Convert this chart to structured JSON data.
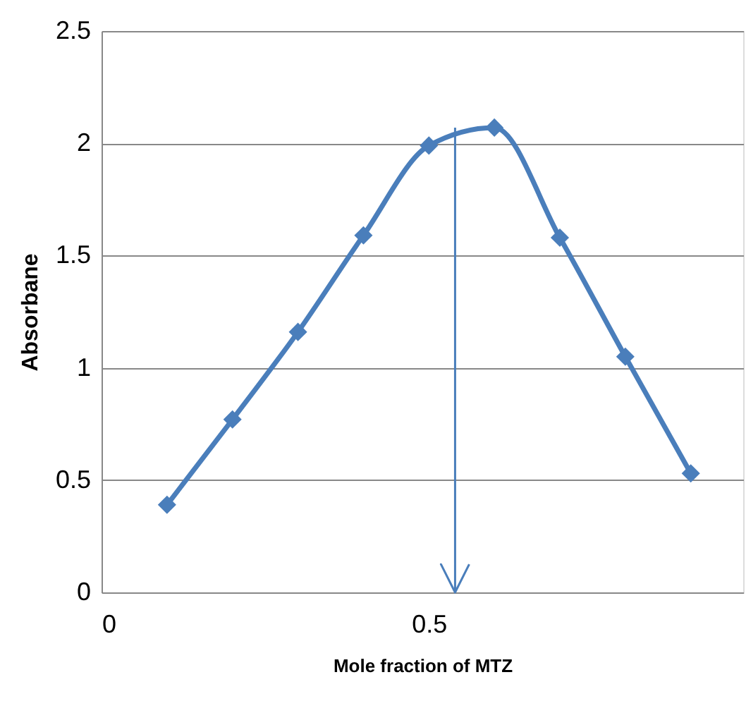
{
  "chart_data": {
    "type": "line",
    "xlabel": "Mole  fraction of MTZ",
    "ylabel": "Absorbane",
    "x": [
      0.1,
      0.2,
      0.3,
      0.4,
      0.5,
      0.6,
      0.7,
      0.8,
      0.9
    ],
    "series": [
      {
        "color": "#4a7ebb",
        "values": [
          0.39,
          0.77,
          1.16,
          1.59,
          1.99,
          2.07,
          1.58,
          1.05,
          0.53
        ]
      }
    ],
    "xlim": [
      0,
      0.98
    ],
    "xticks": [
      0,
      0.5
    ],
    "ylim": [
      0,
      2.5
    ],
    "yticks": [
      0,
      0.5,
      1,
      1.5,
      2,
      2.5
    ],
    "grid": "y",
    "marker": "diamond",
    "line_style": "solid",
    "ref_lines": [
      {
        "axis": "x",
        "value": 0.54,
        "color": "#4a7ebb"
      }
    ]
  }
}
